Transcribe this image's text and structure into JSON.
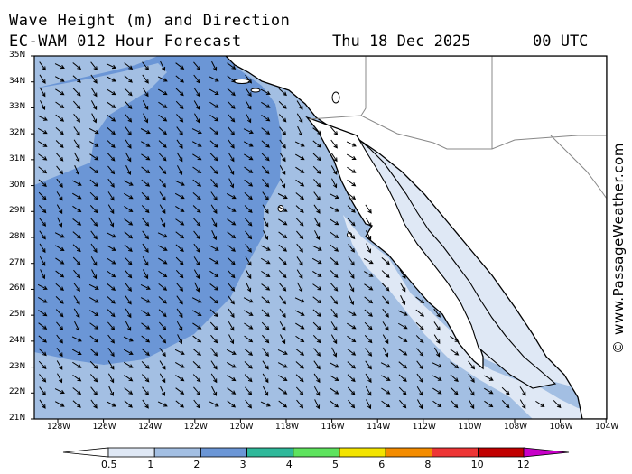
{
  "title": {
    "line1": "Wave Height (m) and Direction",
    "line2": "EC-WAM 012 Hour Forecast",
    "date": "Thu 18 Dec 2025",
    "time": "00 UTC"
  },
  "watermark": "© www.PassageWeather.com",
  "map": {
    "lat_labels": [
      "35N",
      "34N",
      "33N",
      "32N",
      "31N",
      "30N",
      "29N",
      "28N",
      "27N",
      "26N",
      "25N",
      "24N",
      "23N",
      "22N",
      "21N"
    ],
    "lon_labels": [
      "128W",
      "126W",
      "124W",
      "122W",
      "120W",
      "118W",
      "116W",
      "114W",
      "112W",
      "110W",
      "108W",
      "106W",
      "104W"
    ],
    "lat_range": [
      21,
      35
    ],
    "lon_range": [
      -129,
      -104
    ],
    "region": "Baja California / Southern California Pacific coast",
    "wave_direction": "predominantly from the northwest, toward southeast"
  },
  "colorbar": {
    "ticks": [
      "0.5",
      "1",
      "2",
      "3",
      "4",
      "5",
      "6",
      "8",
      "10",
      "12"
    ],
    "colors": [
      "#dfe8f5",
      "#a3bfe3",
      "#6b96d6",
      "#2fb89a",
      "#5ee35e",
      "#f3e400",
      "#f48c00",
      "#ee3535",
      "#c10000",
      "#c800c8"
    ],
    "land_color": "#ffffff",
    "coastline_color": "#000000"
  }
}
